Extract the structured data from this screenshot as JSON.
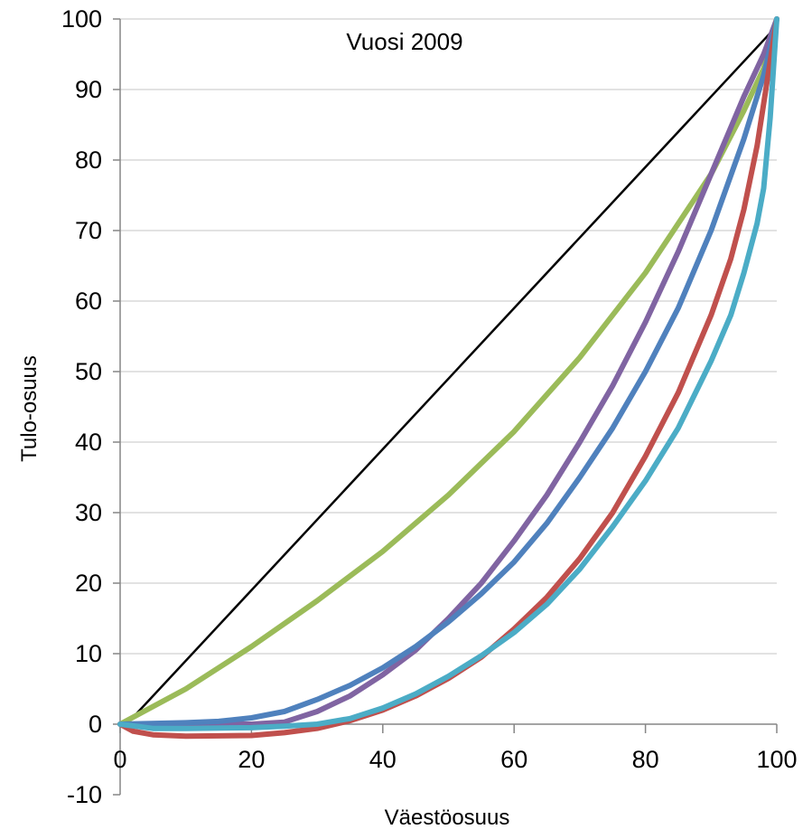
{
  "chart_data": {
    "type": "line",
    "title": "",
    "subtitle": "Vuosi 2009",
    "xlabel": "Väestöosuus",
    "ylabel": "Tulo-osuus",
    "xlim": [
      0,
      100
    ],
    "ylim": [
      -10,
      100
    ],
    "x_ticks": [
      0,
      20,
      40,
      60,
      80,
      100
    ],
    "y_ticks": [
      -10,
      0,
      10,
      20,
      30,
      40,
      50,
      60,
      70,
      80,
      90,
      100
    ],
    "grid": "horizontal",
    "legend": "none",
    "series": [
      {
        "color": "#000000",
        "line_style": "thin",
        "points": [
          [
            1,
            0
          ],
          [
            100,
            99
          ]
        ]
      },
      {
        "color": "#9bbb59",
        "points": [
          [
            0,
            0
          ],
          [
            10,
            5
          ],
          [
            20,
            11
          ],
          [
            30,
            17.5
          ],
          [
            40,
            24.5
          ],
          [
            50,
            32.5
          ],
          [
            60,
            41.5
          ],
          [
            70,
            52
          ],
          [
            80,
            64
          ],
          [
            90,
            78
          ],
          [
            95,
            87
          ],
          [
            98,
            93
          ],
          [
            100,
            100
          ]
        ]
      },
      {
        "color": "#8064a2",
        "points": [
          [
            0,
            0
          ],
          [
            10,
            0
          ],
          [
            20,
            0
          ],
          [
            25,
            0.3
          ],
          [
            30,
            1.8
          ],
          [
            35,
            4
          ],
          [
            40,
            7
          ],
          [
            45,
            10.5
          ],
          [
            50,
            15
          ],
          [
            55,
            20
          ],
          [
            60,
            26
          ],
          [
            65,
            32.5
          ],
          [
            70,
            40
          ],
          [
            75,
            48
          ],
          [
            80,
            57
          ],
          [
            85,
            67
          ],
          [
            90,
            78
          ],
          [
            95,
            89
          ],
          [
            98,
            95
          ],
          [
            100,
            100
          ]
        ]
      },
      {
        "color": "#4f81bd",
        "points": [
          [
            0,
            0
          ],
          [
            10,
            0.2
          ],
          [
            15,
            0.4
          ],
          [
            20,
            0.9
          ],
          [
            25,
            1.8
          ],
          [
            30,
            3.5
          ],
          [
            35,
            5.5
          ],
          [
            40,
            8
          ],
          [
            45,
            11
          ],
          [
            50,
            14.5
          ],
          [
            55,
            18.5
          ],
          [
            60,
            23
          ],
          [
            65,
            28.5
          ],
          [
            70,
            35
          ],
          [
            75,
            42
          ],
          [
            80,
            50
          ],
          [
            85,
            59
          ],
          [
            90,
            70
          ],
          [
            95,
            83
          ],
          [
            98,
            92
          ],
          [
            100,
            100
          ]
        ]
      },
      {
        "color": "#c0504d",
        "points": [
          [
            0,
            0
          ],
          [
            2,
            -1
          ],
          [
            5,
            -1.5
          ],
          [
            10,
            -1.7
          ],
          [
            20,
            -1.6
          ],
          [
            25,
            -1.2
          ],
          [
            30,
            -0.6
          ],
          [
            35,
            0.5
          ],
          [
            40,
            2
          ],
          [
            45,
            4
          ],
          [
            50,
            6.5
          ],
          [
            55,
            9.5
          ],
          [
            60,
            13.5
          ],
          [
            65,
            18
          ],
          [
            70,
            23.5
          ],
          [
            75,
            30
          ],
          [
            80,
            38
          ],
          [
            85,
            47
          ],
          [
            90,
            58
          ],
          [
            93,
            66
          ],
          [
            95,
            73
          ],
          [
            97,
            82
          ],
          [
            98,
            88
          ],
          [
            99,
            94
          ],
          [
            100,
            100
          ]
        ]
      },
      {
        "color": "#4bacc6",
        "points": [
          [
            0,
            0
          ],
          [
            5,
            -0.6
          ],
          [
            10,
            -0.6
          ],
          [
            20,
            -0.5
          ],
          [
            25,
            -0.3
          ],
          [
            30,
            0
          ],
          [
            35,
            0.8
          ],
          [
            40,
            2.3
          ],
          [
            45,
            4.3
          ],
          [
            50,
            6.8
          ],
          [
            55,
            9.7
          ],
          [
            60,
            13
          ],
          [
            65,
            17
          ],
          [
            70,
            22
          ],
          [
            75,
            28
          ],
          [
            80,
            34.5
          ],
          [
            85,
            42
          ],
          [
            90,
            51.5
          ],
          [
            93,
            58
          ],
          [
            95,
            64
          ],
          [
            97,
            71
          ],
          [
            98,
            76
          ],
          [
            99,
            86
          ],
          [
            100,
            100
          ]
        ]
      }
    ]
  }
}
